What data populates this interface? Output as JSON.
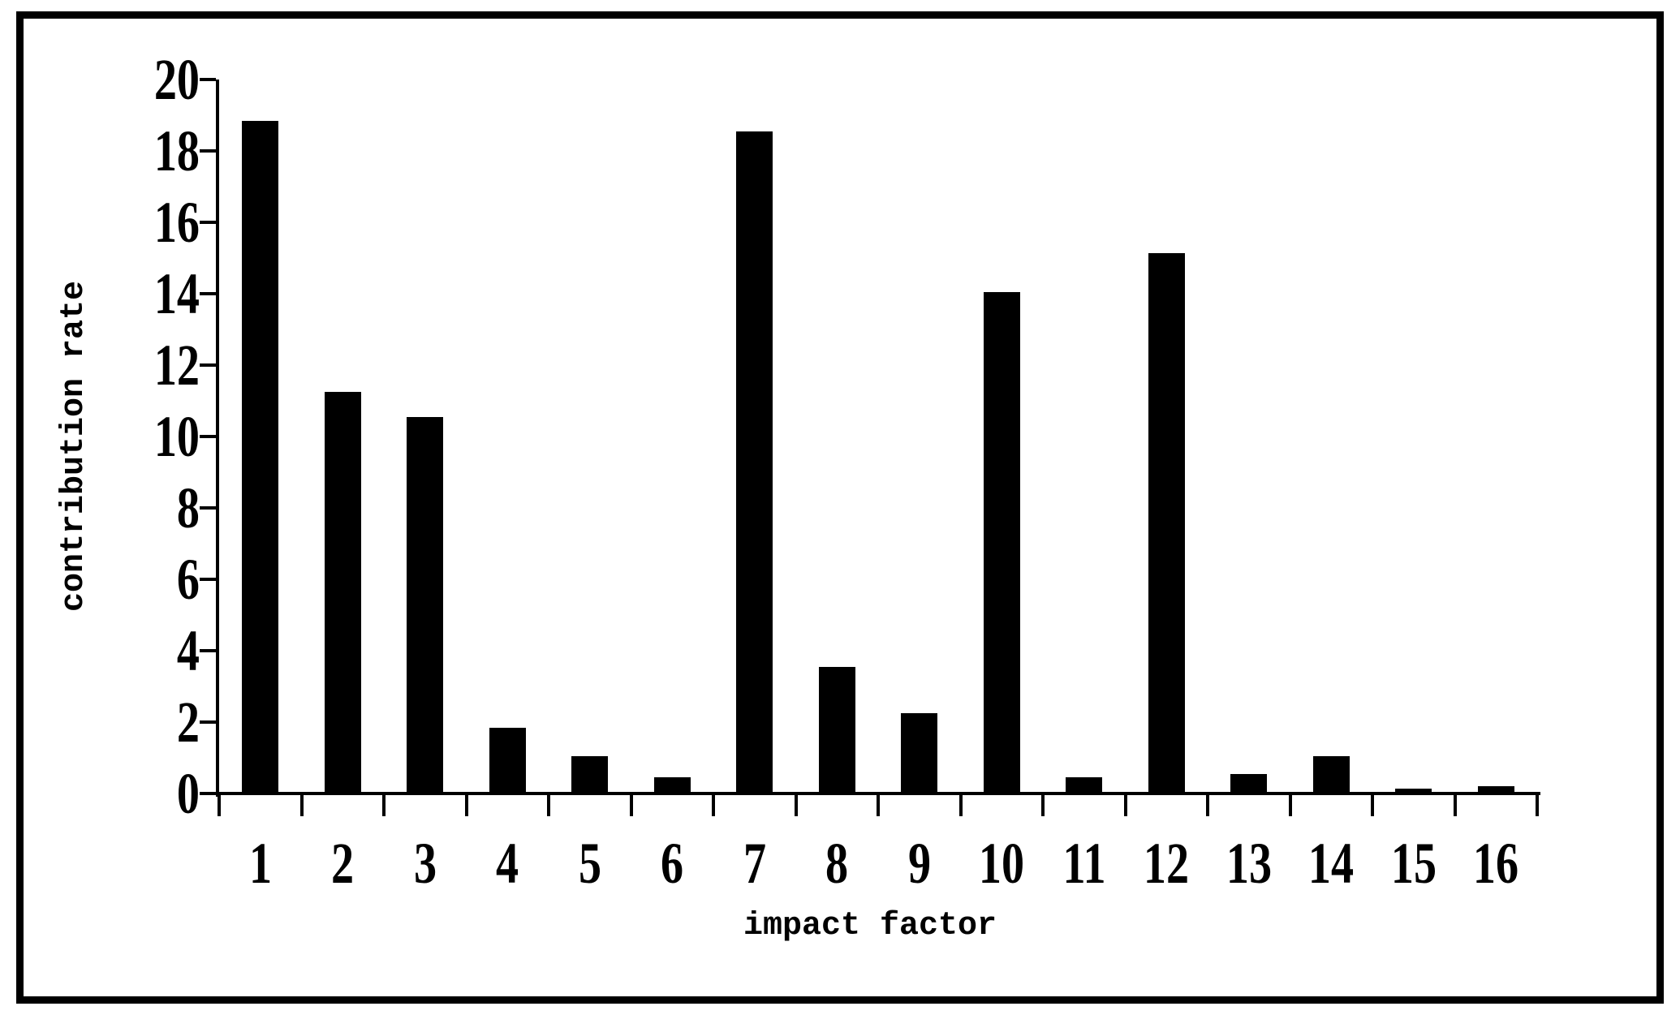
{
  "chart_data": {
    "type": "bar",
    "title": "",
    "xlabel": "impact factor",
    "ylabel": "contribution rate",
    "categories": [
      "1",
      "2",
      "3",
      "4",
      "5",
      "6",
      "7",
      "8",
      "9",
      "10",
      "11",
      "12",
      "13",
      "14",
      "15",
      "16"
    ],
    "values": [
      18.8,
      11.2,
      10.5,
      1.8,
      1.0,
      0.4,
      18.5,
      3.5,
      2.2,
      14.0,
      0.4,
      15.1,
      0.5,
      1.0,
      0.1,
      0.15
    ],
    "ylim": [
      0,
      20
    ],
    "ytick_step": 2,
    "ytick_labels": [
      "0",
      "2",
      "4",
      "6",
      "8",
      "10",
      "12",
      "14",
      "16",
      "18",
      "20"
    ],
    "grid": false,
    "legend": false,
    "bar_color": "#000000",
    "axis_color": "#000000",
    "background": "#ffffff",
    "frame_border_color": "#000000"
  }
}
